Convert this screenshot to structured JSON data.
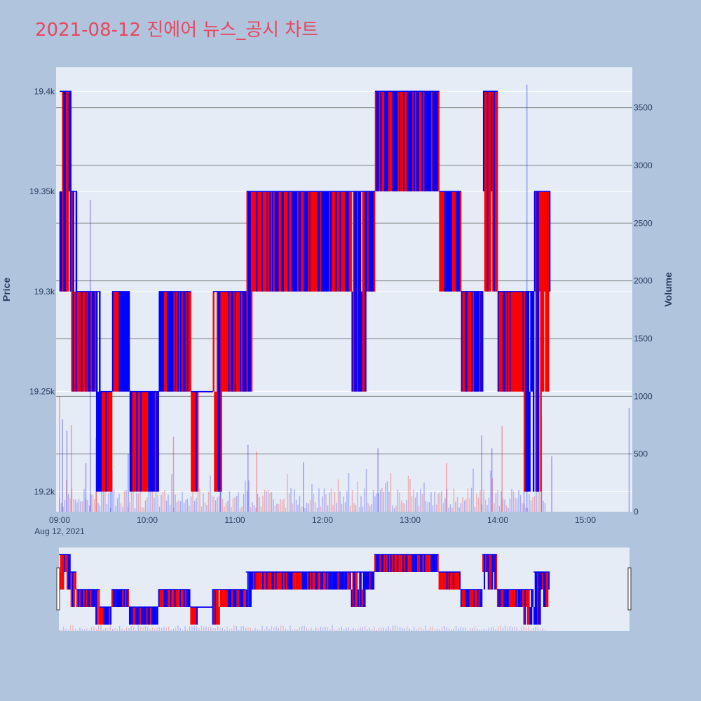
{
  "title": "2021-08-12 진에어 뉴스_공시 차트",
  "colors": {
    "background": "#b0c4de",
    "plot_bg": "#e5ecf6",
    "up": "#ff0000",
    "down": "#0000ff",
    "title": "#e8475f",
    "grid": "#ffffff",
    "volume_grid": "#808080"
  },
  "chart_data": {
    "type": "candlestick",
    "date_label": "Aug 12, 2021",
    "x_ticks": [
      "09:00",
      "10:00",
      "11:00",
      "12:00",
      "13:00",
      "14:00",
      "15:00"
    ],
    "y_price": {
      "label": "Price",
      "ticks": [
        "19.2k",
        "19.25k",
        "19.3k",
        "19.35k",
        "19.4k"
      ],
      "tick_values": [
        19200,
        19250,
        19300,
        19350,
        19400
      ],
      "range": [
        19190,
        19412
      ]
    },
    "y_volume": {
      "label": "Volume",
      "ticks": [
        "0",
        "500",
        "1000",
        "1500",
        "2000",
        "2500",
        "3000",
        "3500"
      ],
      "tick_values": [
        0,
        500,
        1000,
        1500,
        2000,
        2500,
        3000,
        3500
      ],
      "range": [
        0,
        3850
      ]
    },
    "x_range_minutes": [
      0,
      390
    ],
    "price_segments": [
      {
        "t0": 0,
        "t1": 8,
        "lo": 19300,
        "hi": 19400
      },
      {
        "t0": 8,
        "t1": 12,
        "lo": 19250,
        "hi": 19350
      },
      {
        "t0": 12,
        "t1": 25,
        "lo": 19250,
        "hi": 19300
      },
      {
        "t0": 25,
        "t1": 28,
        "lo": 19200,
        "hi": 19300
      },
      {
        "t0": 28,
        "t1": 36,
        "lo": 19200,
        "hi": 19250
      },
      {
        "t0": 36,
        "t1": 48,
        "lo": 19250,
        "hi": 19300
      },
      {
        "t0": 48,
        "t1": 68,
        "lo": 19200,
        "hi": 19250
      },
      {
        "t0": 68,
        "t1": 90,
        "lo": 19250,
        "hi": 19300
      },
      {
        "t0": 90,
        "t1": 95,
        "lo": 19200,
        "hi": 19250
      },
      {
        "t0": 95,
        "t1": 105,
        "lo": 19250,
        "hi": 19250
      },
      {
        "t0": 105,
        "t1": 112,
        "lo": 19200,
        "hi": 19300
      },
      {
        "t0": 112,
        "t1": 128,
        "lo": 19250,
        "hi": 19300
      },
      {
        "t0": 128,
        "t1": 132,
        "lo": 19250,
        "hi": 19350
      },
      {
        "t0": 132,
        "t1": 170,
        "lo": 19300,
        "hi": 19350
      },
      {
        "t0": 170,
        "t1": 200,
        "lo": 19300,
        "hi": 19350
      },
      {
        "t0": 200,
        "t1": 210,
        "lo": 19250,
        "hi": 19350
      },
      {
        "t0": 210,
        "t1": 216,
        "lo": 19300,
        "hi": 19350
      },
      {
        "t0": 216,
        "t1": 260,
        "lo": 19350,
        "hi": 19400
      },
      {
        "t0": 260,
        "t1": 275,
        "lo": 19300,
        "hi": 19350
      },
      {
        "t0": 275,
        "t1": 290,
        "lo": 19250,
        "hi": 19300
      },
      {
        "t0": 290,
        "t1": 300,
        "lo": 19300,
        "hi": 19400
      },
      {
        "t0": 300,
        "t1": 318,
        "lo": 19250,
        "hi": 19300
      },
      {
        "t0": 318,
        "t1": 325,
        "lo": 19200,
        "hi": 19300
      },
      {
        "t0": 325,
        "t1": 330,
        "lo": 19200,
        "hi": 19350
      },
      {
        "t0": 330,
        "t1": 336,
        "lo": 19250,
        "hi": 19350
      }
    ],
    "volume_spikes": [
      {
        "t": 0,
        "v": 1000
      },
      {
        "t": 2,
        "v": 800
      },
      {
        "t": 5,
        "v": 700
      },
      {
        "t": 8,
        "v": 750
      },
      {
        "t": 18,
        "v": 420
      },
      {
        "t": 21,
        "v": 2700
      },
      {
        "t": 25,
        "v": 640
      },
      {
        "t": 35,
        "v": 600
      },
      {
        "t": 47,
        "v": 500
      },
      {
        "t": 78,
        "v": 650
      },
      {
        "t": 110,
        "v": 550
      },
      {
        "t": 129,
        "v": 580
      },
      {
        "t": 135,
        "v": 520
      },
      {
        "t": 167,
        "v": 430
      },
      {
        "t": 218,
        "v": 550
      },
      {
        "t": 265,
        "v": 420
      },
      {
        "t": 289,
        "v": 660
      },
      {
        "t": 296,
        "v": 550
      },
      {
        "t": 303,
        "v": 740
      },
      {
        "t": 318,
        "v": 1300
      },
      {
        "t": 320,
        "v": 3700
      },
      {
        "t": 330,
        "v": 830
      },
      {
        "t": 337,
        "v": 480
      },
      {
        "t": 390,
        "v": 900
      }
    ],
    "series": [
      {
        "name": "Price"
      },
      {
        "name": "Volume"
      }
    ]
  }
}
